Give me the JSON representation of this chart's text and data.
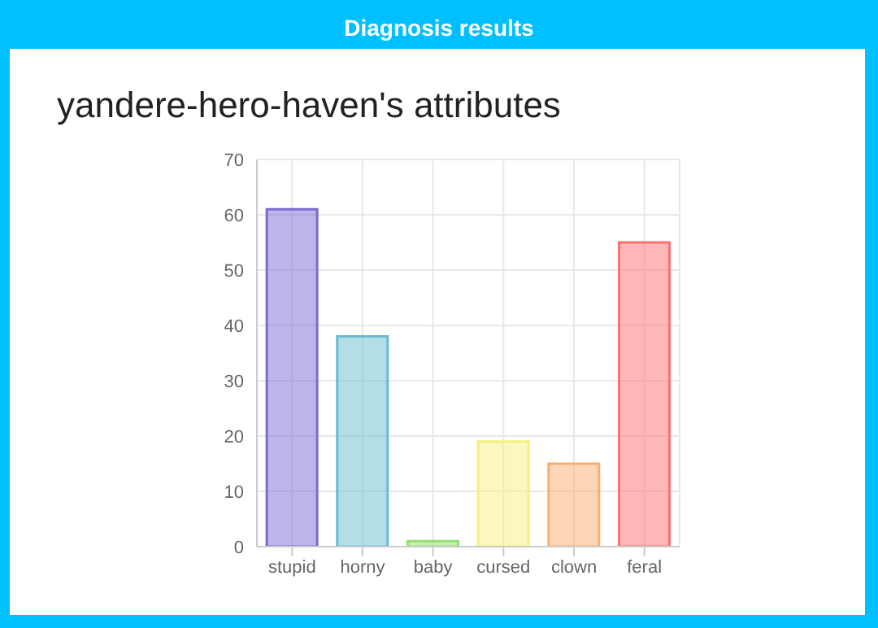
{
  "chart_data": {
    "type": "bar",
    "title": "Diagnosis results",
    "subtitle": "yandere-hero-haven's attributes",
    "categories": [
      "stupid",
      "horny",
      "baby",
      "cursed",
      "clown",
      "feral"
    ],
    "values": [
      61,
      38,
      1,
      19,
      15,
      55
    ],
    "colors": [
      "#7a6cd0",
      "#68bcd0",
      "#92e070",
      "#f6f080",
      "#fbad70",
      "#ff7070"
    ],
    "ylim": [
      0,
      70
    ],
    "yticks": [
      0,
      10,
      20,
      30,
      40,
      50,
      60,
      70
    ],
    "grid": true
  }
}
